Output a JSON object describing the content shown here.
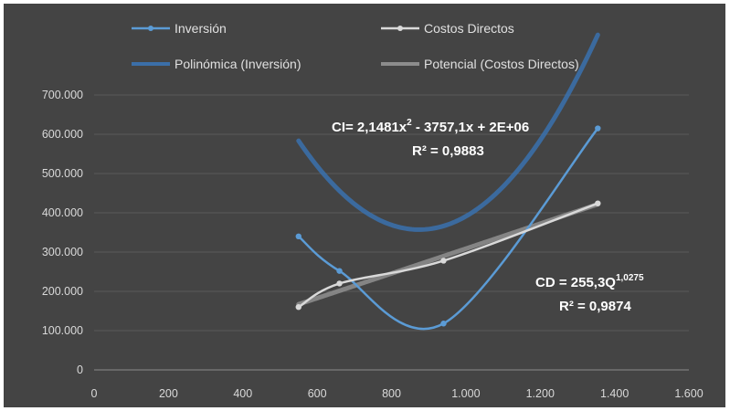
{
  "colors": {
    "background": "#444444",
    "gridline": "#5a5a5a",
    "axis": "#8c8c8c",
    "inversion": "#5b9bd5",
    "inversion_trend": "#3b6fa8",
    "costos": "#d9d9d9",
    "costos_trend": "#8c8c8c"
  },
  "chart_data": {
    "type": "scatter",
    "title": "",
    "xlabel": "",
    "ylabel": "",
    "xlim": [
      0,
      1600
    ],
    "ylim": [
      0,
      700000
    ],
    "x_ticks": [
      "0",
      "200",
      "400",
      "600",
      "800",
      "1.000",
      "1.200",
      "1.400",
      "1.600"
    ],
    "y_ticks": [
      "0",
      "100.000",
      "200.000",
      "300.000",
      "400.000",
      "500.000",
      "600.000",
      "700.000"
    ],
    "grid": "horizontal",
    "legend_position": "top",
    "series": [
      {
        "name": "Inversión",
        "style": "smooth-line-markers",
        "points": [
          [
            550,
            340000
          ],
          [
            660,
            252000
          ],
          [
            940,
            118000
          ],
          [
            1355,
            615000
          ]
        ]
      },
      {
        "name": "Costos Directos",
        "style": "smooth-line-markers",
        "points": [
          [
            550,
            160000
          ],
          [
            660,
            220000
          ],
          [
            940,
            278000
          ],
          [
            1355,
            424000
          ]
        ]
      }
    ],
    "trendlines": [
      {
        "name": "Polinómica (Inversión)",
        "series": "Inversión",
        "kind": "polynomial",
        "coefficients": [
          2.1481,
          -3757.1,
          2000000
        ],
        "equation": "CI= 2,1481x",
        "equation_sup": "2",
        "equation_tail": " - 3757,1x + 2E+06",
        "r2": "R² = 0,9883"
      },
      {
        "name": "Potencial (Costos Directos)",
        "series": "Costos Directos",
        "kind": "power",
        "a": 255.3,
        "b": 1.0275,
        "equation": "CD = 255,3Q",
        "equation_sup": "1,0275",
        "r2": "R² = 0,9874"
      }
    ]
  }
}
